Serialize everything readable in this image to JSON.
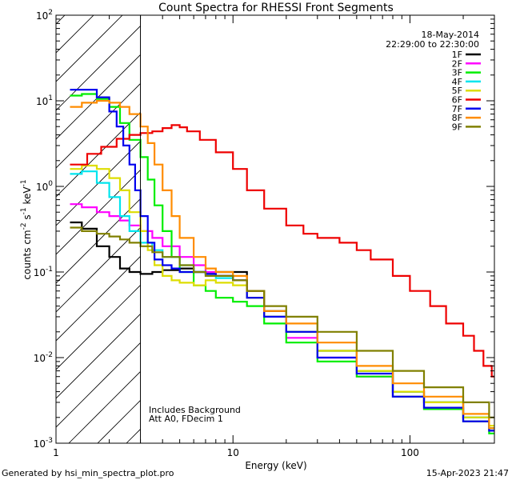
{
  "chart_data": {
    "type": "line",
    "title": "Count Spectra for RHESSI Front Segments",
    "xlabel": "Energy (keV)",
    "ylabel_html": "counts cm<tspan dy='-6' font-size='9'>-2</tspan><tspan dy='6'> s</tspan><tspan dy='-6' font-size='9'>-1</tspan><tspan dy='6'> keV</tspan><tspan dy='-6' font-size='9'>-1</tspan>",
    "ylabel_text": "counts cm-2 s-1 keV-1",
    "xscale": "log",
    "yscale": "log",
    "xlim": [
      1,
      300
    ],
    "ylim": [
      0.001,
      100
    ],
    "xticks": [
      {
        "v": 1,
        "label": "1"
      },
      {
        "v": 10,
        "label": "10"
      },
      {
        "v": 100,
        "label": "100"
      }
    ],
    "yticks": [
      {
        "v": 100,
        "base": "10",
        "exp": "2"
      },
      {
        "v": 10,
        "base": "10",
        "exp": "1"
      },
      {
        "v": 1,
        "base": "10",
        "exp": "0"
      },
      {
        "v": 0.1,
        "base": "10",
        "exp": "-1"
      },
      {
        "v": 0.01,
        "base": "10",
        "exp": "-2"
      },
      {
        "v": 0.001,
        "base": "10",
        "exp": "-3"
      }
    ],
    "shaded_region": {
      "x": [
        1,
        3
      ],
      "style": "diagonal-hatch"
    },
    "vline": 3,
    "legend_header": [
      "18-May-2014",
      "22:29:00 to 22:30:00"
    ],
    "legend_position": "top-right",
    "annotations": [
      "Includes Background",
      "Att A0, FDecim 1"
    ],
    "series": [
      {
        "name": "1F",
        "color": "#000000",
        "x": [
          1.2,
          1.4,
          1.7,
          2.0,
          2.3,
          2.6,
          3.0,
          3.5,
          4,
          5,
          6,
          7,
          8,
          9,
          10,
          12,
          15,
          20,
          30,
          50,
          80,
          120,
          200,
          280
        ],
        "y": [
          0.38,
          0.32,
          0.2,
          0.15,
          0.11,
          0.1,
          0.095,
          0.1,
          0.105,
          0.11,
          0.1,
          0.095,
          0.1,
          0.1,
          0.1,
          0.06,
          0.035,
          0.02,
          0.012,
          0.007,
          0.004,
          0.003,
          0.002,
          0.0015
        ]
      },
      {
        "name": "2F",
        "color": "#ff00ff",
        "x": [
          1.2,
          1.4,
          1.7,
          2.0,
          2.3,
          2.6,
          3.0,
          3.5,
          4,
          5,
          6,
          7,
          8,
          10,
          12,
          15,
          20,
          30,
          50,
          80,
          120,
          200,
          280
        ],
        "y": [
          0.62,
          0.57,
          0.5,
          0.45,
          0.4,
          0.35,
          0.3,
          0.25,
          0.2,
          0.15,
          0.12,
          0.1,
          0.09,
          0.08,
          0.05,
          0.03,
          0.017,
          0.01,
          0.006,
          0.0035,
          0.0025,
          0.0018,
          0.0014
        ]
      },
      {
        "name": "3F",
        "color": "#00ee00",
        "x": [
          1.2,
          1.4,
          1.7,
          2.0,
          2.3,
          2.6,
          3.0,
          3.3,
          3.6,
          4.0,
          4.5,
          5,
          6,
          7,
          8,
          10,
          12,
          15,
          20,
          30,
          50,
          80,
          120,
          200,
          280
        ],
        "y": [
          11.5,
          12.0,
          10.5,
          8.5,
          5.5,
          3.5,
          2.2,
          1.2,
          0.6,
          0.3,
          0.15,
          0.1,
          0.07,
          0.06,
          0.05,
          0.045,
          0.04,
          0.025,
          0.015,
          0.009,
          0.006,
          0.0035,
          0.0025,
          0.0018,
          0.0013
        ]
      },
      {
        "name": "4F",
        "color": "#00e5ee",
        "x": [
          1.2,
          1.4,
          1.7,
          2.0,
          2.3,
          2.6,
          3.0,
          3.5,
          4,
          5,
          6,
          7,
          8,
          10,
          12,
          15,
          20,
          30,
          50,
          80,
          120,
          200,
          280
        ],
        "y": [
          1.4,
          1.5,
          1.1,
          0.75,
          0.45,
          0.3,
          0.22,
          0.18,
          0.15,
          0.12,
          0.1,
          0.09,
          0.085,
          0.08,
          0.05,
          0.03,
          0.02,
          0.012,
          0.007,
          0.004,
          0.003,
          0.002,
          0.0015
        ]
      },
      {
        "name": "5F",
        "color": "#dddd00",
        "x": [
          1.2,
          1.4,
          1.7,
          2.0,
          2.3,
          2.6,
          3.0,
          3.3,
          3.6,
          4.0,
          4.5,
          5,
          6,
          7,
          8,
          10,
          12,
          15,
          20,
          30,
          50,
          80,
          120,
          200,
          280
        ],
        "y": [
          1.6,
          1.75,
          1.6,
          1.25,
          0.9,
          0.5,
          0.3,
          0.18,
          0.12,
          0.09,
          0.08,
          0.075,
          0.07,
          0.08,
          0.075,
          0.07,
          0.05,
          0.03,
          0.02,
          0.012,
          0.007,
          0.004,
          0.003,
          0.002,
          0.0016
        ]
      },
      {
        "name": "6F",
        "color": "#ee0000",
        "x": [
          1.2,
          1.5,
          1.8,
          2.2,
          2.6,
          3.0,
          3.5,
          4.0,
          4.5,
          5.0,
          5.5,
          6.5,
          8,
          10,
          12,
          15,
          20,
          25,
          30,
          40,
          50,
          60,
          80,
          100,
          130,
          160,
          200,
          230,
          260,
          290
        ],
        "y": [
          1.8,
          2.4,
          2.9,
          3.6,
          4.0,
          4.2,
          4.4,
          4.8,
          5.2,
          4.9,
          4.4,
          3.5,
          2.5,
          1.6,
          0.9,
          0.55,
          0.35,
          0.28,
          0.25,
          0.22,
          0.18,
          0.14,
          0.09,
          0.06,
          0.04,
          0.025,
          0.018,
          0.012,
          0.008,
          0.006
        ]
      },
      {
        "name": "7F",
        "color": "#0000ee",
        "x": [
          1.2,
          1.4,
          1.7,
          2.0,
          2.2,
          2.4,
          2.6,
          2.8,
          3.0,
          3.3,
          3.6,
          4.0,
          4.5,
          5,
          6,
          7,
          8,
          10,
          12,
          15,
          20,
          30,
          50,
          80,
          120,
          200,
          280
        ],
        "y": [
          13.5,
          13.5,
          11,
          7.5,
          5.0,
          3.0,
          1.8,
          0.9,
          0.45,
          0.22,
          0.14,
          0.12,
          0.11,
          0.1,
          0.1,
          0.095,
          0.09,
          0.08,
          0.05,
          0.03,
          0.02,
          0.01,
          0.0065,
          0.0035,
          0.0026,
          0.0018,
          0.0014
        ]
      },
      {
        "name": "8F",
        "color": "#ff8c00",
        "x": [
          1.2,
          1.4,
          1.7,
          2.0,
          2.3,
          2.6,
          3.0,
          3.3,
          3.6,
          4.0,
          4.5,
          5,
          6,
          7,
          8,
          10,
          12,
          15,
          20,
          30,
          50,
          80,
          120,
          200,
          280
        ],
        "y": [
          8.5,
          9.5,
          10,
          9.5,
          8.5,
          7.0,
          5.0,
          3.2,
          1.8,
          0.9,
          0.45,
          0.25,
          0.15,
          0.11,
          0.1,
          0.09,
          0.06,
          0.035,
          0.025,
          0.015,
          0.008,
          0.005,
          0.0035,
          0.0022,
          0.0015
        ]
      },
      {
        "name": "9F",
        "color": "#808000",
        "x": [
          1.2,
          1.4,
          1.7,
          2.0,
          2.3,
          2.6,
          3.0,
          3.5,
          4,
          5,
          6,
          7,
          8,
          10,
          12,
          15,
          20,
          30,
          50,
          80,
          120,
          200,
          280
        ],
        "y": [
          0.33,
          0.3,
          0.28,
          0.26,
          0.24,
          0.22,
          0.2,
          0.17,
          0.15,
          0.12,
          0.1,
          0.09,
          0.09,
          0.08,
          0.06,
          0.04,
          0.03,
          0.02,
          0.012,
          0.007,
          0.0045,
          0.003,
          0.002
        ]
      }
    ]
  },
  "footer": {
    "left": "Generated by hsi_min_spectra_plot.pro",
    "right": "15-Apr-2023 21:47"
  },
  "colors": {
    "frame": "#000000",
    "background": "#ffffff"
  }
}
